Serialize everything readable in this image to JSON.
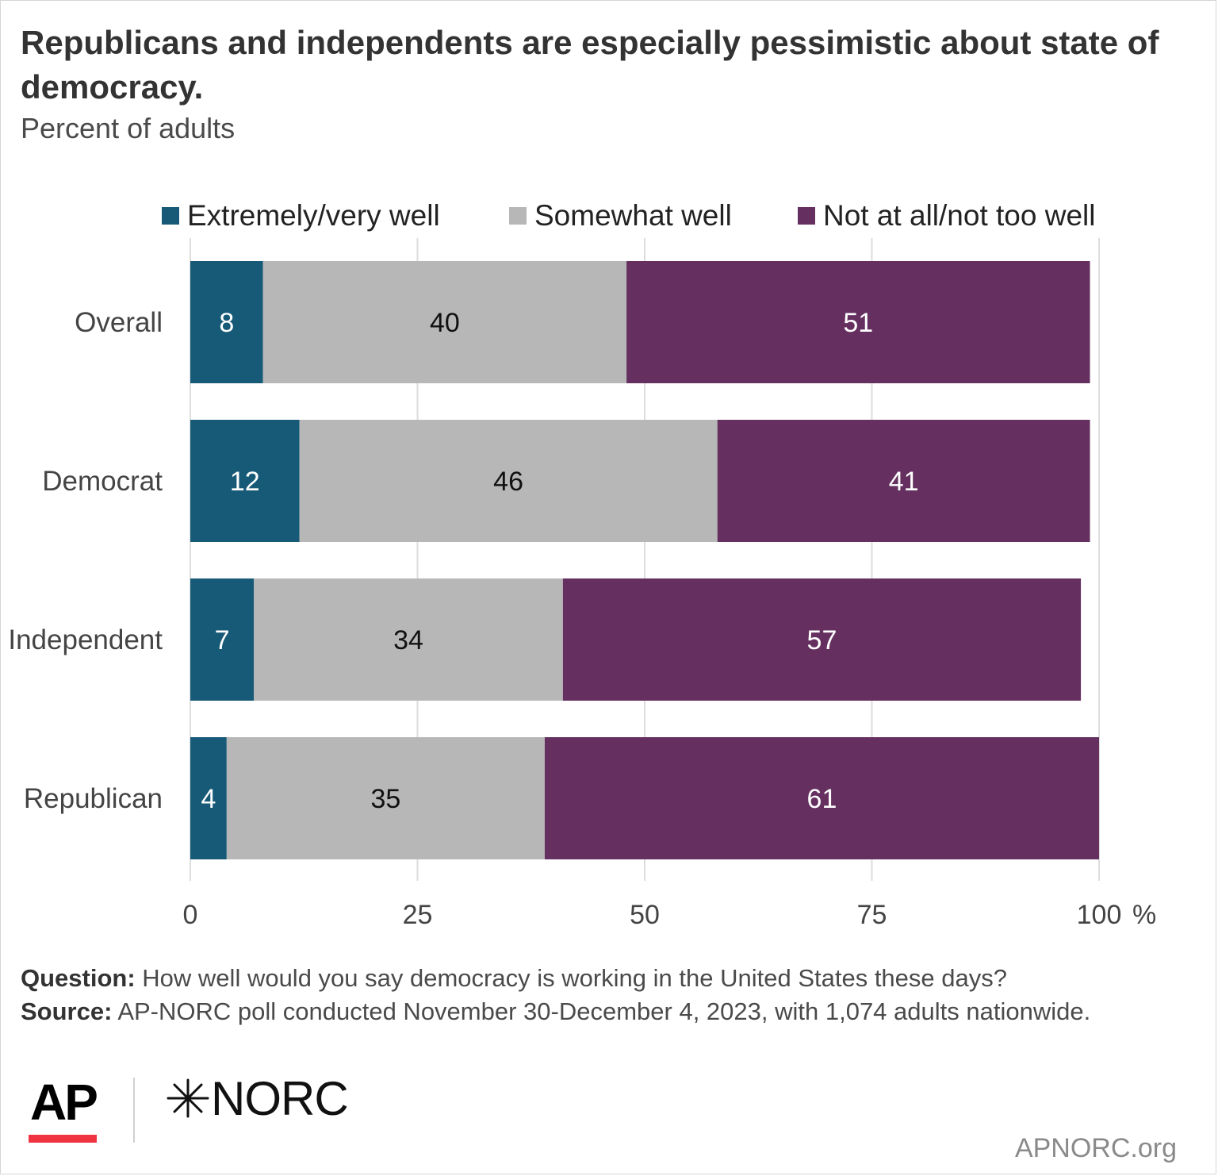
{
  "header": {
    "title": "Republicans and independents are especially pessimistic about state of democracy.",
    "subtitle": "Percent of adults"
  },
  "legend": [
    {
      "label": "Extremely/very well",
      "color": "#175a78"
    },
    {
      "label": "Somewhat well",
      "color": "#b7b7b7"
    },
    {
      "label": "Not at all/not too well",
      "color": "#652f60"
    }
  ],
  "chart_data": {
    "type": "bar",
    "orientation": "horizontal",
    "stacked": true,
    "categories": [
      "Overall",
      "Democrat",
      "Independent",
      "Republican"
    ],
    "series": [
      {
        "name": "Extremely/very well",
        "values": [
          8,
          12,
          7,
          4
        ],
        "color": "#175a78",
        "label_color": "#ffffff"
      },
      {
        "name": "Somewhat well",
        "values": [
          40,
          46,
          34,
          35
        ],
        "color": "#b7b7b7",
        "label_color": "#111111"
      },
      {
        "name": "Not at all/not too well",
        "values": [
          51,
          41,
          57,
          61
        ],
        "color": "#652f60",
        "label_color": "#ffffff"
      }
    ],
    "xlim": [
      0,
      100
    ],
    "xticks": [
      0,
      25,
      50,
      75,
      100
    ],
    "x_unit": "%",
    "grid": true,
    "legend_position": "top"
  },
  "notes": {
    "question_label": "Question:",
    "question_text": "How well would you say democracy is working in the United States these days?",
    "source_label": "Source:",
    "source_text": "AP-NORC poll conducted November 30-December 4, 2023, with 1,074 adults nationwide."
  },
  "branding": {
    "ap_logo": "AP",
    "ap_accent_color": "#ef3340",
    "norc_logo": "NORC",
    "norc_icon": "star-burst-icon",
    "site": "APNORC.org"
  }
}
